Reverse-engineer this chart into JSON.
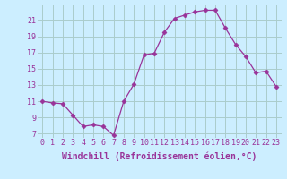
{
  "x": [
    0,
    1,
    2,
    3,
    4,
    5,
    6,
    7,
    8,
    9,
    10,
    11,
    12,
    13,
    14,
    15,
    16,
    17,
    18,
    19,
    20,
    21,
    22,
    23
  ],
  "y": [
    11.0,
    10.8,
    10.7,
    9.3,
    7.9,
    8.1,
    7.9,
    6.8,
    11.0,
    13.1,
    16.7,
    16.9,
    19.5,
    21.2,
    21.6,
    22.0,
    22.2,
    22.2,
    20.0,
    18.0,
    16.5,
    14.5,
    14.7,
    12.8
  ],
  "line_color": "#993399",
  "marker": "D",
  "marker_size": 2.5,
  "bg_color": "#cceeff",
  "grid_color": "#aacccc",
  "xlabel": "Windchill (Refroidissement éolien,°C)",
  "xlabel_fontsize": 7.0,
  "yticks": [
    7,
    9,
    11,
    13,
    15,
    17,
    19,
    21
  ],
  "xticks": [
    0,
    1,
    2,
    3,
    4,
    5,
    6,
    7,
    8,
    9,
    10,
    11,
    12,
    13,
    14,
    15,
    16,
    17,
    18,
    19,
    20,
    21,
    22,
    23
  ],
  "ylim": [
    6.5,
    22.8
  ],
  "xlim": [
    -0.5,
    23.5
  ],
  "tick_fontsize": 6.0,
  "linewidth": 0.9
}
